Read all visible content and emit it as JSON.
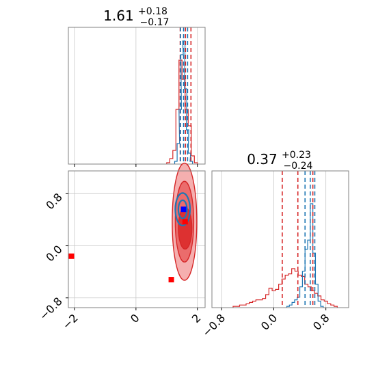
{
  "chart_data": {
    "type": "corner",
    "colors": {
      "blue": "#1f77b4",
      "red": "#d62728",
      "marker_blue": "#0000ff",
      "marker_red": "#ff0000",
      "grid": "#c8c8c8"
    },
    "params": [
      {
        "title": {
          "main": "1.61",
          "plus": "+0.18",
          "minus": "−0.17"
        },
        "range": [
          -2.2,
          2.25
        ],
        "ticks": [
          -2,
          0,
          2
        ],
        "tick_labels": [
          "−2",
          "0",
          "2"
        ]
      },
      {
        "title": {
          "main": "0.37",
          "plus": "+0.23",
          "minus": "−0.24"
        },
        "range": [
          -0.95,
          1.15
        ],
        "ticks": [
          -0.8,
          0.0,
          0.8
        ],
        "tick_labels": [
          "−0.8",
          "0.0",
          "0.8"
        ]
      }
    ],
    "hist1": {
      "red": {
        "centers": [
          1.05,
          1.15,
          1.25,
          1.35,
          1.45,
          1.55,
          1.65,
          1.75,
          1.85,
          1.95
        ],
        "heights": [
          0.01,
          0.04,
          0.1,
          0.4,
          0.76,
          0.62,
          0.4,
          0.28,
          0.06,
          0.01
        ]
      },
      "blue": {
        "centers": [
          1.3,
          1.38,
          1.44,
          1.5,
          1.56,
          1.62,
          1.68,
          1.74,
          1.8
        ],
        "heights": [
          0.02,
          0.15,
          0.4,
          0.8,
          0.9,
          0.55,
          0.25,
          0.08,
          0.02
        ]
      },
      "quantiles": {
        "red": [
          1.44,
          1.61,
          1.79
        ],
        "blue": [
          1.45,
          1.55,
          1.68
        ]
      }
    },
    "hist2": {
      "red": {
        "centers": [
          -0.6,
          -0.55,
          -0.5,
          -0.45,
          -0.4,
          -0.35,
          -0.3,
          -0.25,
          -0.2,
          -0.15,
          -0.1,
          -0.05,
          0.0,
          0.05,
          0.1,
          0.15,
          0.2,
          0.25,
          0.3,
          0.35,
          0.4,
          0.45,
          0.5,
          0.55,
          0.6,
          0.65,
          0.7,
          0.75,
          0.8,
          0.85,
          0.9,
          0.95
        ],
        "heights": [
          0.01,
          0.01,
          0.02,
          0.02,
          0.03,
          0.04,
          0.05,
          0.06,
          0.06,
          0.07,
          0.1,
          0.15,
          0.13,
          0.14,
          0.18,
          0.22,
          0.25,
          0.26,
          0.3,
          0.28,
          0.25,
          0.24,
          0.18,
          0.16,
          0.13,
          0.11,
          0.09,
          0.06,
          0.05,
          0.03,
          0.02,
          0.01
        ]
      },
      "blue": {
        "centers": [
          0.22,
          0.26,
          0.3,
          0.34,
          0.38,
          0.42,
          0.46,
          0.5,
          0.54,
          0.58,
          0.62,
          0.66,
          0.7,
          0.74
        ],
        "heights": [
          0.01,
          0.02,
          0.04,
          0.06,
          0.08,
          0.16,
          0.28,
          0.45,
          0.52,
          0.8,
          0.42,
          0.18,
          0.05,
          0.01
        ]
      },
      "quantiles": {
        "red": [
          0.13,
          0.37,
          0.6
        ],
        "blue": [
          0.48,
          0.56,
          0.63
        ]
      }
    },
    "scatter2d": {
      "red_markers": [
        {
          "x": -2.1,
          "y": -0.16
        },
        {
          "x": 1.15,
          "y": -0.52
        },
        {
          "x": 1.6,
          "y": 0.37
        }
      ],
      "blue_markers": [
        {
          "x": 1.55,
          "y": 0.56
        }
      ],
      "red_contours": [
        {
          "cx": 1.58,
          "cy": 0.37,
          "rx": 0.4,
          "ry": 0.9,
          "level": "outer"
        },
        {
          "cx": 1.58,
          "cy": 0.37,
          "rx": 0.3,
          "ry": 0.62,
          "level": "middle"
        },
        {
          "cx": 1.6,
          "cy": 0.27,
          "rx": 0.22,
          "ry": 0.32,
          "level": "inner"
        }
      ],
      "blue_contours": [
        {
          "cx": 1.52,
          "cy": 0.56,
          "rx": 0.24,
          "ry": 0.25
        },
        {
          "cx": 1.52,
          "cy": 0.56,
          "rx": 0.14,
          "ry": 0.14
        }
      ]
    }
  }
}
